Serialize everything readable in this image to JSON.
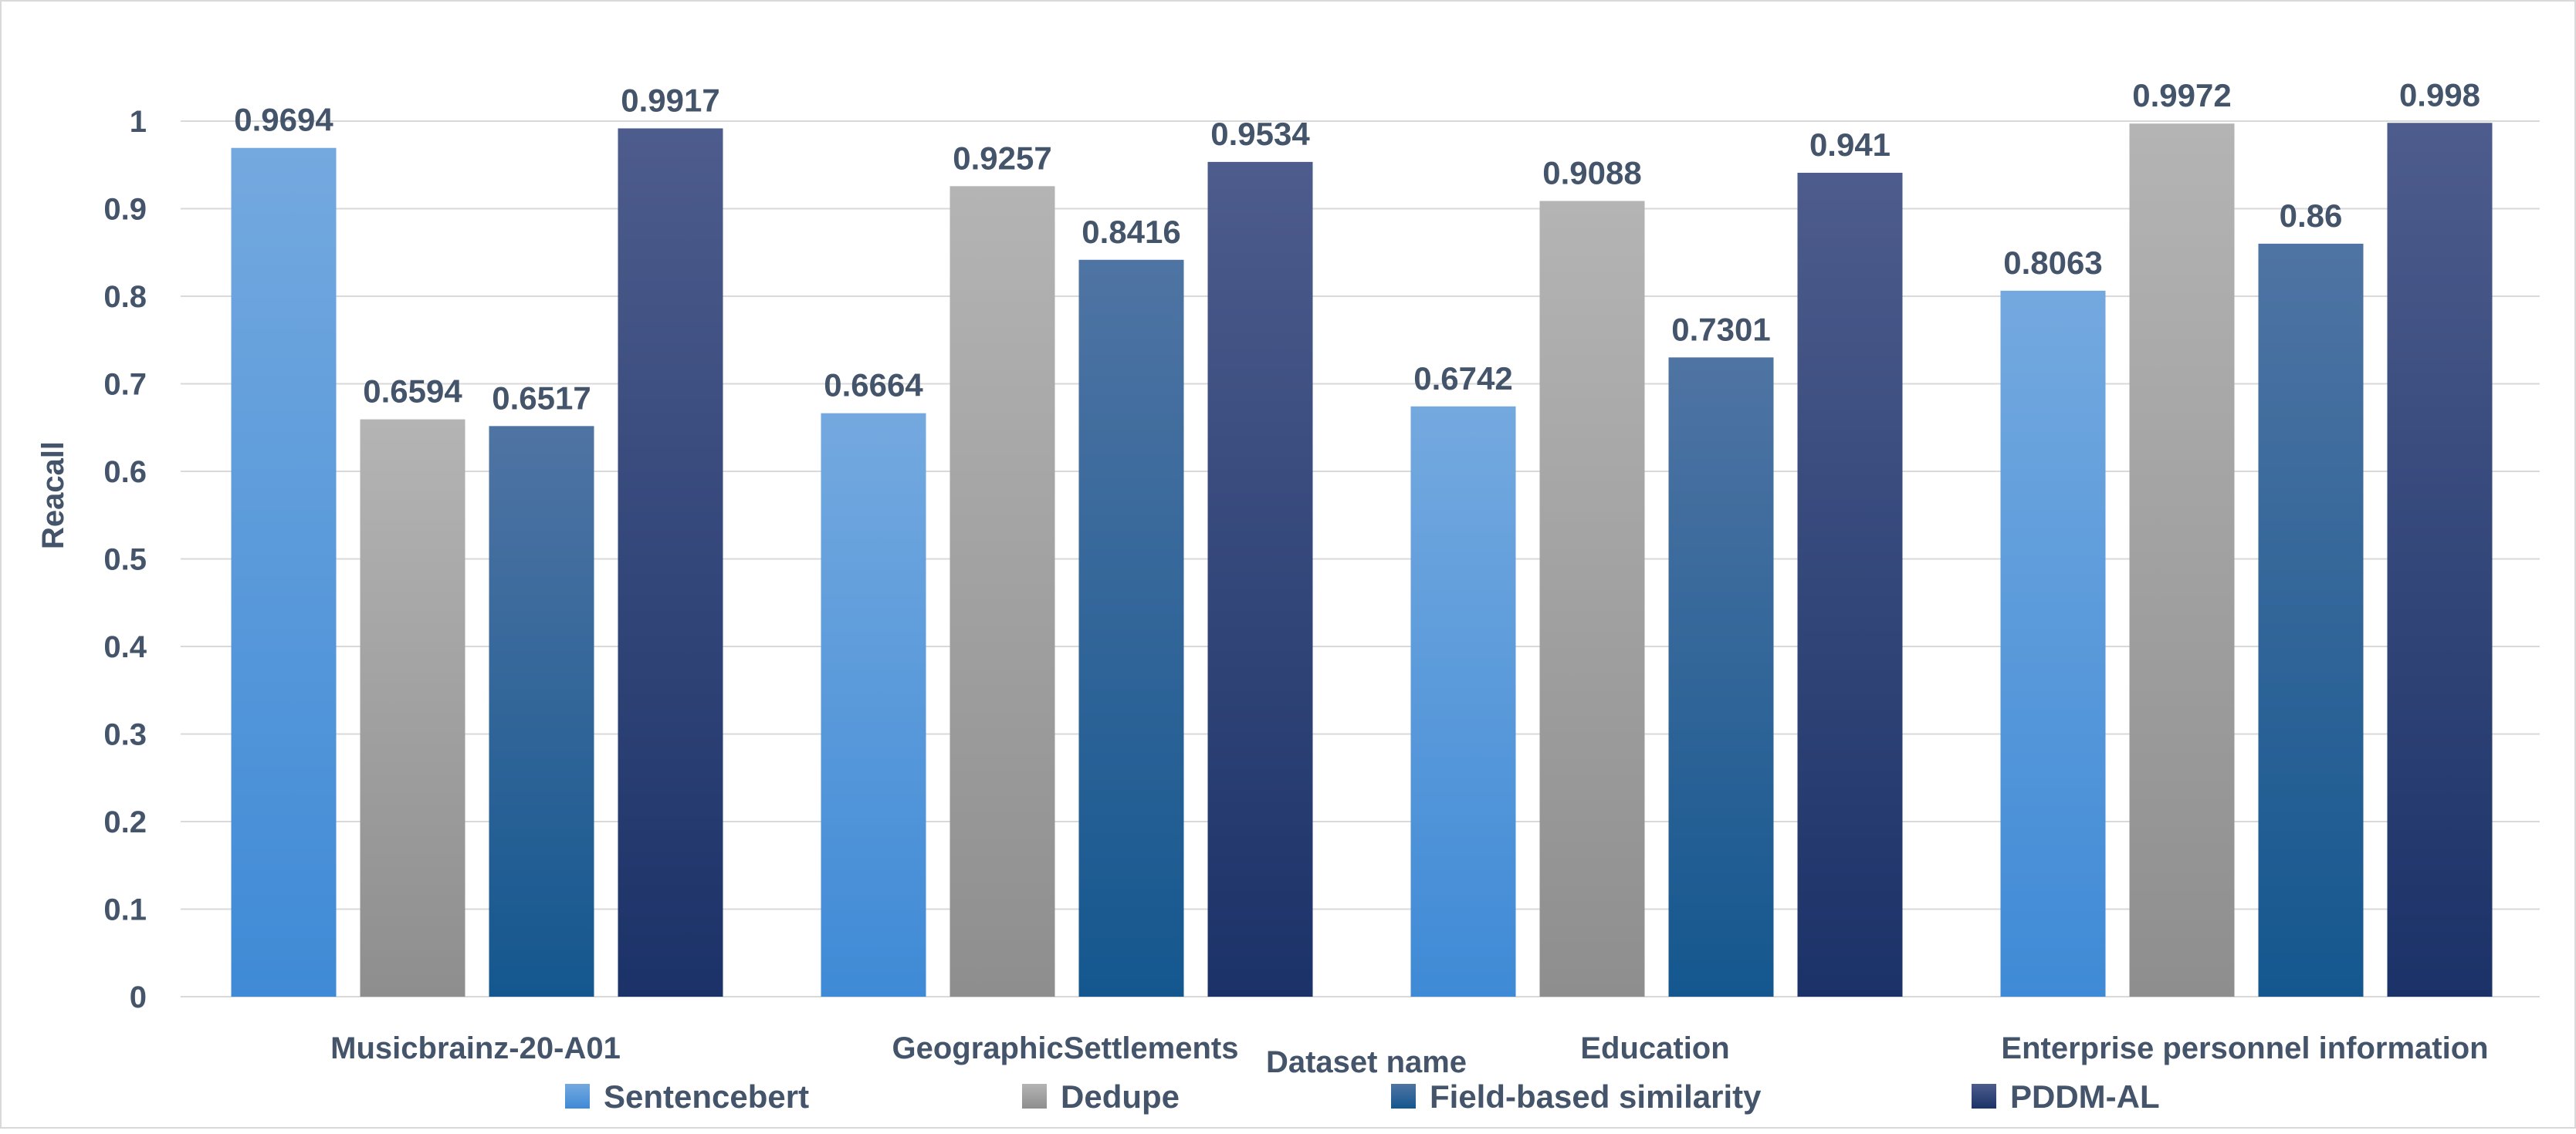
{
  "chart_data": {
    "type": "bar",
    "title": "",
    "xlabel": "Dataset name",
    "ylabel": "Reacall",
    "ylim": [
      0,
      1
    ],
    "yticks": [
      "0",
      "0.1",
      "0.2",
      "0.3",
      "0.4",
      "0.5",
      "0.6",
      "0.7",
      "0.8",
      "0.9",
      "1"
    ],
    "grid": true,
    "legend_position": "bottom",
    "categories": [
      "Musicbrainz-20-A01",
      "GeographicSettlements",
      "Education",
      "Enterprise personnel information"
    ],
    "series": [
      {
        "name": "Sentencebert",
        "values": [
          0.9694,
          0.6664,
          0.6742,
          0.8063
        ],
        "labels": [
          "0.9694",
          "0.6664",
          "0.6742",
          "0.8063"
        ],
        "color_top": "#74a9df",
        "color_bottom": "#3f8ad6"
      },
      {
        "name": "Dedupe",
        "values": [
          0.6594,
          0.9257,
          0.9088,
          0.9972
        ],
        "labels": [
          "0.6594",
          "0.9257",
          "0.9088",
          "0.9972"
        ],
        "color_top": "#b4b4b4",
        "color_bottom": "#8e8e8e"
      },
      {
        "name": "Field-based similarity",
        "values": [
          0.6517,
          0.8416,
          0.7301,
          0.86
        ],
        "labels": [
          "0.6517",
          "0.8416",
          "0.7301",
          "0.86"
        ],
        "color_top": "#4f74a3",
        "color_bottom": "#14578f"
      },
      {
        "name": "PDDM-AL",
        "values": [
          0.9917,
          0.9534,
          0.941,
          0.998
        ],
        "labels": [
          "0.9917",
          "0.9534",
          "0.941",
          "0.998"
        ],
        "color_top": "#4d5c8c",
        "color_bottom": "#1b3268"
      }
    ]
  }
}
